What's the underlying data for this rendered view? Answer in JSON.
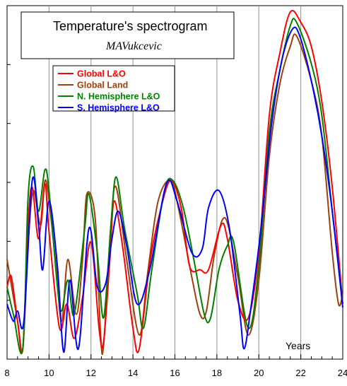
{
  "chart_data": {
    "type": "line",
    "title": "Temperature's spectrogram",
    "subtitle": "MAVukcevic",
    "xlabel": "Years",
    "ylabel": "",
    "xlim": [
      8,
      24
    ],
    "ylim": [
      0,
      1
    ],
    "x_ticks": [
      "8",
      "10",
      "12",
      "14",
      "16",
      "18",
      "20",
      "22",
      "24"
    ],
    "grid": {
      "vertical": true,
      "horizontal": "left-edge-ticks-only"
    },
    "legend_position": "top-left",
    "series": [
      {
        "name": "Global L&O",
        "color": "#ff0000",
        "points": [
          [
            8,
            0.2
          ],
          [
            8.2,
            0.23
          ],
          [
            8.5,
            0.1
          ],
          [
            8.75,
            0.02
          ],
          [
            9,
            0.38
          ],
          [
            9.2,
            0.49
          ],
          [
            9.5,
            0.34
          ],
          [
            9.8,
            0.5
          ],
          [
            10,
            0.36
          ],
          [
            10.5,
            0.08
          ],
          [
            10.85,
            0.15
          ],
          [
            11.2,
            0.05
          ],
          [
            11.6,
            0.17
          ],
          [
            12,
            0.33
          ],
          [
            12.4,
            0.07
          ],
          [
            12.6,
            0.04
          ],
          [
            12.9,
            0.28
          ],
          [
            13.1,
            0.45
          ],
          [
            13.5,
            0.32
          ],
          [
            14,
            0.08
          ],
          [
            14.3,
            0.02
          ],
          [
            14.8,
            0.27
          ],
          [
            15.3,
            0.42
          ],
          [
            15.8,
            0.51
          ],
          [
            16.3,
            0.43
          ],
          [
            16.7,
            0.26
          ],
          [
            17.2,
            0.25
          ],
          [
            17.6,
            0.25
          ],
          [
            18.2,
            0.38
          ],
          [
            18.5,
            0.34
          ],
          [
            19,
            0.16
          ],
          [
            19.5,
            0.11
          ],
          [
            20,
            0.3
          ],
          [
            20.5,
            0.7
          ],
          [
            21,
            0.88
          ],
          [
            21.5,
            1.0
          ],
          [
            22,
            0.97
          ],
          [
            22.5,
            0.9
          ],
          [
            23,
            0.74
          ],
          [
            23.5,
            0.49
          ],
          [
            24,
            0.15
          ]
        ]
      },
      {
        "name": "Global Land",
        "color": "#a0400a",
        "points": [
          [
            8,
            0.28
          ],
          [
            8.5,
            0.1
          ],
          [
            8.75,
            0.02
          ],
          [
            9,
            0.32
          ],
          [
            9.25,
            0.48
          ],
          [
            9.6,
            0.38
          ],
          [
            9.85,
            0.51
          ],
          [
            10.3,
            0.28
          ],
          [
            10.6,
            0.1
          ],
          [
            10.9,
            0.28
          ],
          [
            11.3,
            0.12
          ],
          [
            11.6,
            0.28
          ],
          [
            11.8,
            0.47
          ],
          [
            12.2,
            0.4
          ],
          [
            12.45,
            0.07
          ],
          [
            12.6,
            0.03
          ],
          [
            12.95,
            0.38
          ],
          [
            13.2,
            0.49
          ],
          [
            13.7,
            0.28
          ],
          [
            14.3,
            0.06
          ],
          [
            14.7,
            0.24
          ],
          [
            15.2,
            0.45
          ],
          [
            15.8,
            0.51
          ],
          [
            16.2,
            0.42
          ],
          [
            16.8,
            0.23
          ],
          [
            17.2,
            0.12
          ],
          [
            17.5,
            0.13
          ],
          [
            17.9,
            0.3
          ],
          [
            18.4,
            0.4
          ],
          [
            19,
            0.23
          ],
          [
            19.5,
            0.06
          ],
          [
            20,
            0.22
          ],
          [
            20.5,
            0.58
          ],
          [
            21,
            0.79
          ],
          [
            21.5,
            0.9
          ],
          [
            21.8,
            0.93
          ],
          [
            22.5,
            0.8
          ],
          [
            23,
            0.64
          ],
          [
            23.5,
            0.3
          ],
          [
            23.8,
            0.15
          ],
          [
            24,
            0.18
          ]
        ]
      },
      {
        "name": "N. Hemisphere L&O",
        "color": "#008000",
        "points": [
          [
            8,
            0.2
          ],
          [
            8.3,
            0.12
          ],
          [
            8.75,
            0.02
          ],
          [
            9,
            0.46
          ],
          [
            9.25,
            0.55
          ],
          [
            9.5,
            0.42
          ],
          [
            9.8,
            0.54
          ],
          [
            10,
            0.48
          ],
          [
            10.4,
            0.2
          ],
          [
            10.6,
            0.13
          ],
          [
            10.9,
            0.22
          ],
          [
            11.2,
            0.12
          ],
          [
            11.7,
            0.37
          ],
          [
            11.9,
            0.47
          ],
          [
            12.3,
            0.3
          ],
          [
            12.6,
            0.11
          ],
          [
            12.95,
            0.38
          ],
          [
            13.2,
            0.52
          ],
          [
            13.6,
            0.37
          ],
          [
            14.2,
            0.18
          ],
          [
            14.5,
            0.08
          ],
          [
            14.9,
            0.25
          ],
          [
            15.5,
            0.48
          ],
          [
            15.9,
            0.51
          ],
          [
            16.4,
            0.43
          ],
          [
            16.9,
            0.28
          ],
          [
            17.4,
            0.12
          ],
          [
            17.7,
            0.11
          ],
          [
            18.1,
            0.25
          ],
          [
            18.5,
            0.32
          ],
          [
            18.8,
            0.33
          ],
          [
            19.5,
            0.08
          ],
          [
            20,
            0.26
          ],
          [
            20.5,
            0.65
          ],
          [
            21,
            0.83
          ],
          [
            21.5,
            0.96
          ],
          [
            21.8,
            0.97
          ],
          [
            22.5,
            0.85
          ],
          [
            23,
            0.7
          ],
          [
            23.5,
            0.42
          ],
          [
            24,
            0.15
          ]
        ]
      },
      {
        "name": "S. Hemisphere L&O",
        "color": "#0000ff",
        "points": [
          [
            8,
            0.15
          ],
          [
            8.3,
            0.1
          ],
          [
            8.5,
            0.13
          ],
          [
            8.8,
            0.1
          ],
          [
            9.2,
            0.51
          ],
          [
            9.5,
            0.38
          ],
          [
            9.7,
            0.25
          ],
          [
            10,
            0.45
          ],
          [
            10.4,
            0.26
          ],
          [
            10.7,
            0.01
          ],
          [
            11,
            0.22
          ],
          [
            11.4,
            0.02
          ],
          [
            11.9,
            0.37
          ],
          [
            12.3,
            0.2
          ],
          [
            12.7,
            0.21
          ],
          [
            13,
            0.34
          ],
          [
            13.3,
            0.42
          ],
          [
            13.7,
            0.32
          ],
          [
            14.2,
            0.15
          ],
          [
            14.8,
            0.25
          ],
          [
            15.6,
            0.5
          ],
          [
            16.1,
            0.45
          ],
          [
            16.8,
            0.3
          ],
          [
            17.3,
            0.31
          ],
          [
            17.6,
            0.43
          ],
          [
            18.1,
            0.48
          ],
          [
            18.6,
            0.37
          ],
          [
            19.1,
            0.12
          ],
          [
            19.3,
            0.02
          ],
          [
            19.6,
            0.13
          ],
          [
            20.1,
            0.37
          ],
          [
            20.6,
            0.67
          ],
          [
            21.1,
            0.86
          ],
          [
            21.6,
            0.95
          ],
          [
            21.95,
            0.93
          ],
          [
            22.5,
            0.8
          ],
          [
            23,
            0.64
          ],
          [
            23.5,
            0.42
          ],
          [
            24,
            0.14
          ]
        ]
      }
    ]
  }
}
